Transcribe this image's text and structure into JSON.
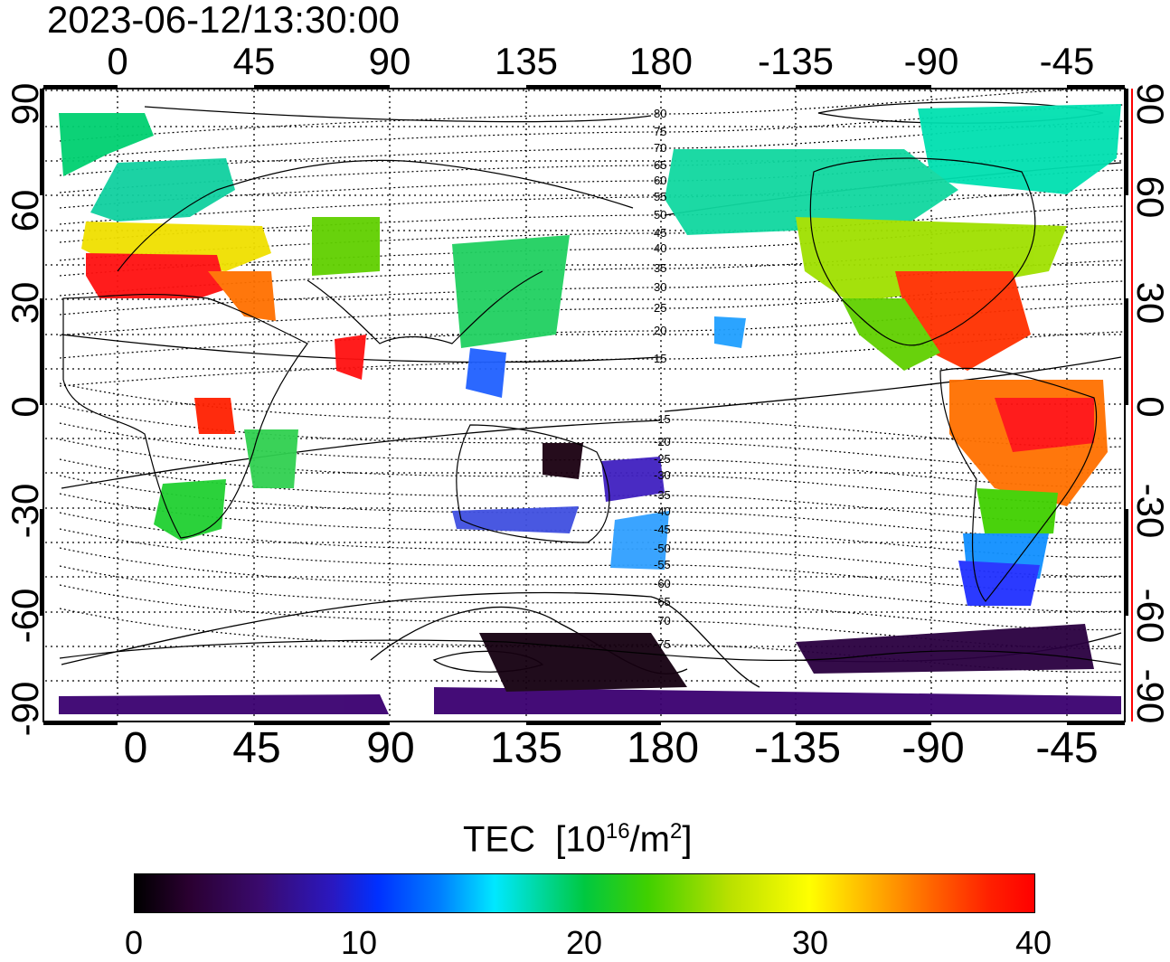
{
  "timestamp": "2023-06-12/13:30:00",
  "top_ticks": [
    "0",
    "45",
    "90",
    "135",
    "180",
    "-135",
    "-90",
    "-45"
  ],
  "bottom_ticks": [
    "0",
    "45",
    "90",
    "135",
    "180",
    "-135",
    "-90",
    "-45"
  ],
  "left_ticks": [
    "90",
    "60",
    "30",
    "0",
    "-30",
    "-60",
    "-90"
  ],
  "right_ticks": [
    "90",
    "60",
    "30",
    "0",
    "-30",
    "-60",
    "-90"
  ],
  "contour_labels": [
    "80",
    "75",
    "70",
    "65",
    "60",
    "55",
    "50",
    "45",
    "40",
    "35",
    "30",
    "25",
    "20",
    "15",
    "-15",
    "-20",
    "-25",
    "-30",
    "-35",
    "-40",
    "-45",
    "-50",
    "-55",
    "-60",
    "-65",
    "-70",
    "-75"
  ],
  "colorbar": {
    "title": "TEC",
    "unit_base": "[10",
    "unit_exp": "16",
    "unit_mid": "/m",
    "unit_exp2": "2",
    "unit_end": "]",
    "ticks": [
      "0",
      "10",
      "20",
      "30",
      "40"
    ],
    "range": [
      0,
      40
    ]
  },
  "colors": {
    "low": "#000000",
    "mid": "#00c840",
    "high": "#ff0000",
    "right_axis": "#ff0000"
  }
}
